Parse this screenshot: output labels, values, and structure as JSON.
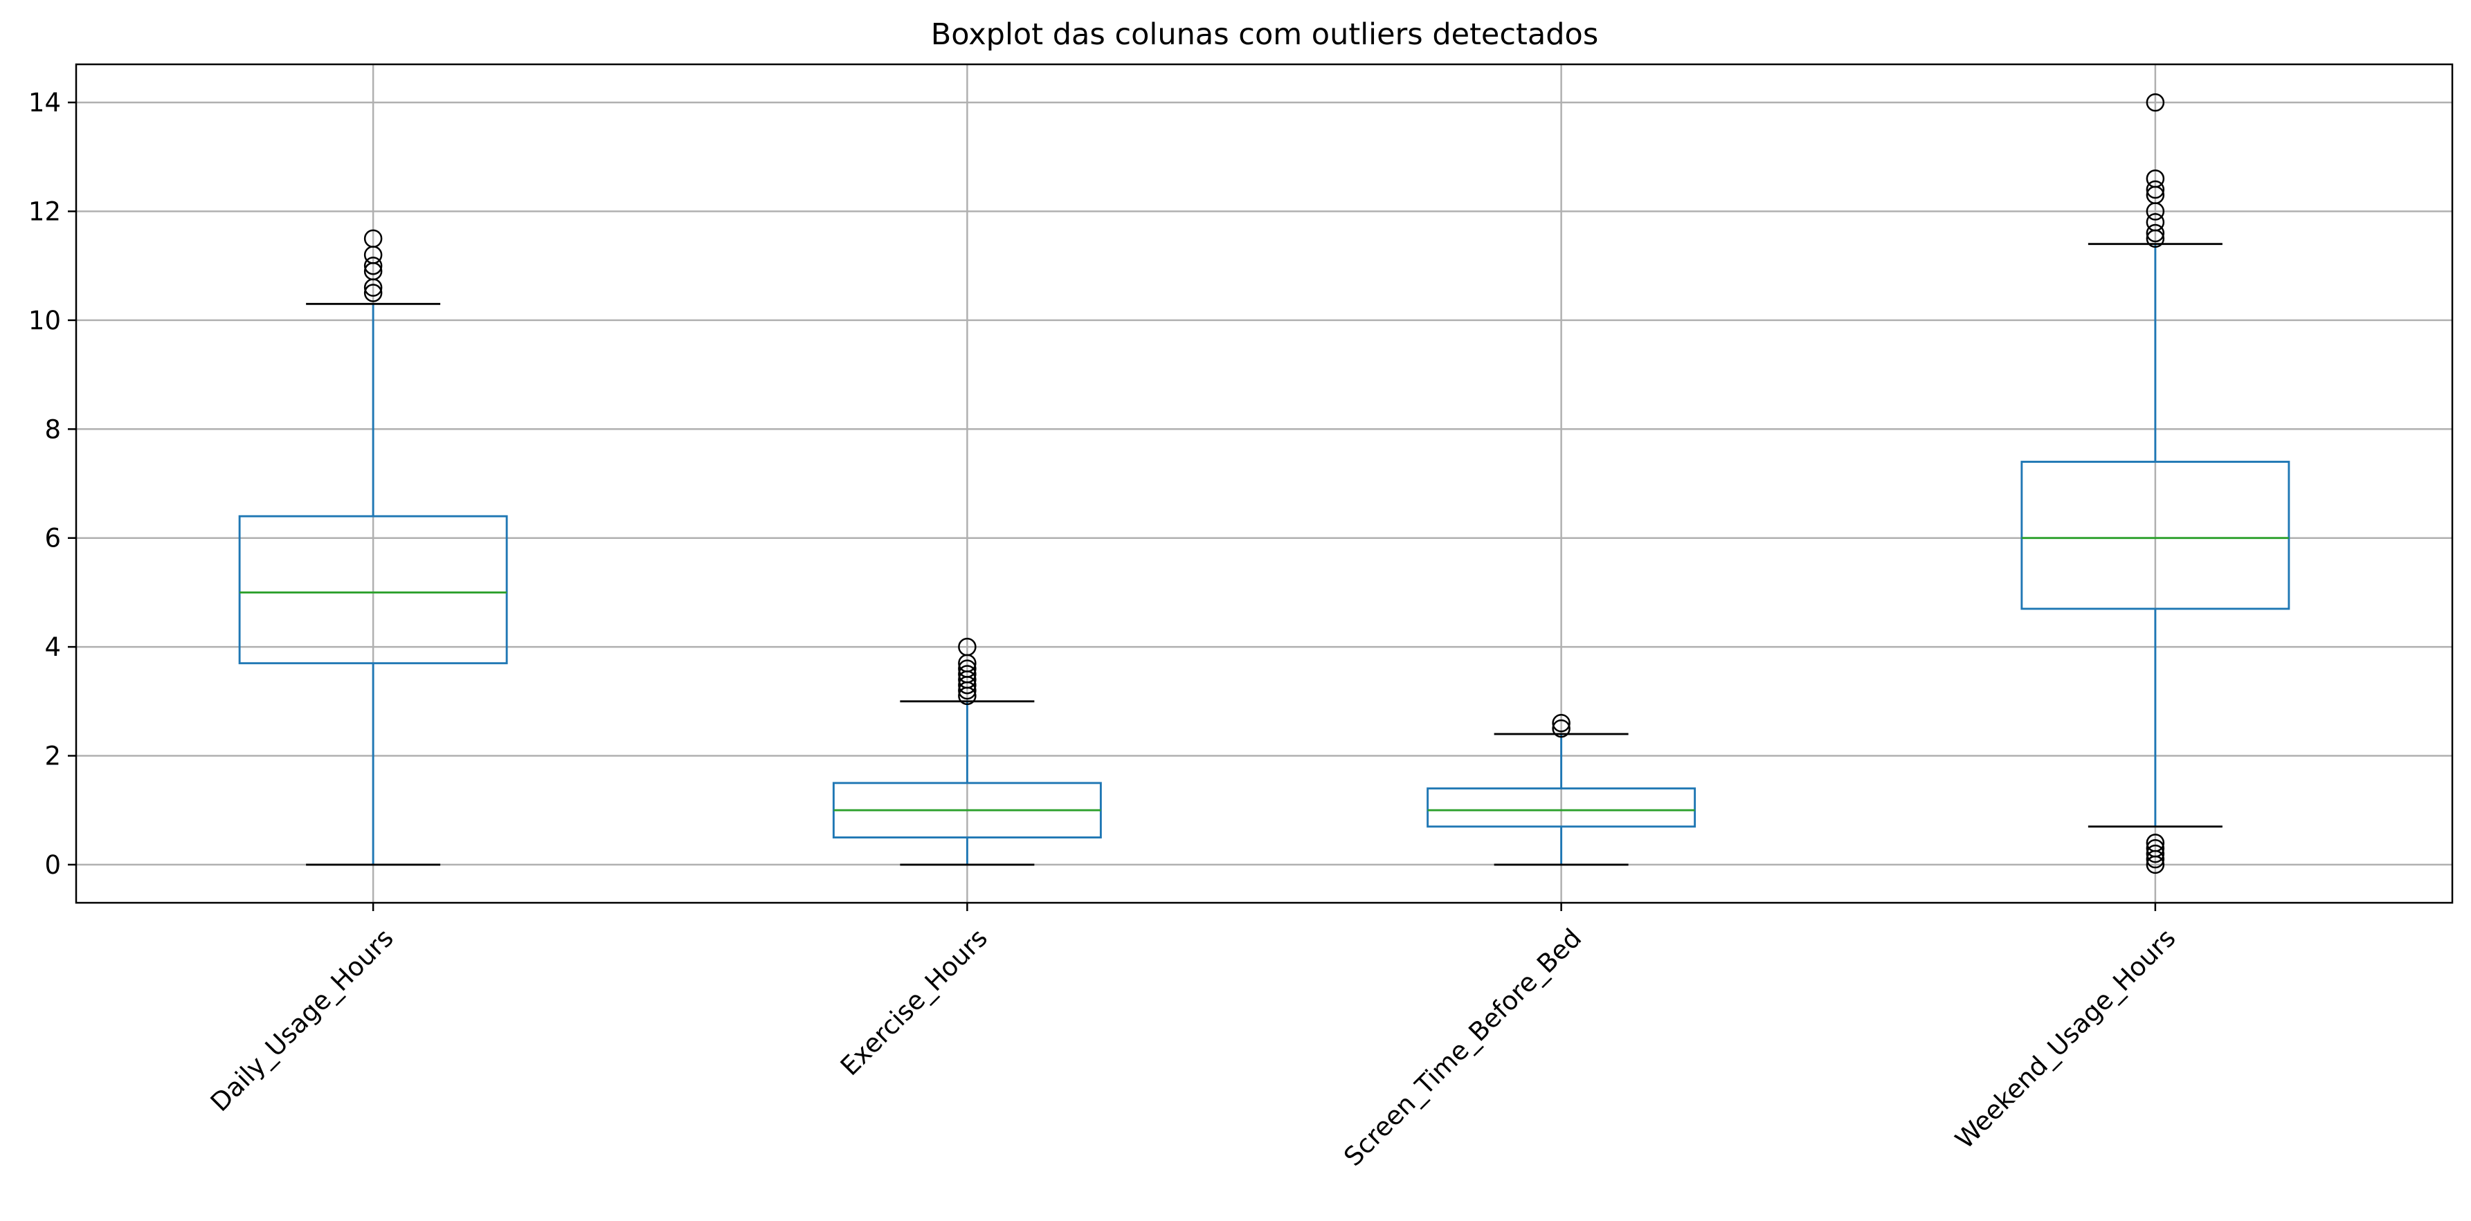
{
  "chart_data": {
    "type": "boxplot",
    "title": "Boxplot das colunas com outliers detectados",
    "xlabel": "",
    "ylabel": "",
    "ylim": [
      -0.7,
      14.7
    ],
    "yticks": [
      0,
      2,
      4,
      6,
      8,
      10,
      12,
      14
    ],
    "grid": true,
    "colors": {
      "box": "#1f77b4",
      "whisker": "#1f77b4",
      "cap": "#000000",
      "median": "#2ca02c",
      "flier": "#000000",
      "grid": "#b0b0b0"
    },
    "categories": [
      "Daily_Usage_Hours",
      "Exercise_Hours",
      "Screen_Time_Before_Bed",
      "Weekend_Usage_Hours"
    ],
    "boxes": [
      {
        "label": "Daily_Usage_Hours",
        "whisker_low": 0.0,
        "q1": 3.7,
        "median": 5.0,
        "q3": 6.4,
        "whisker_high": 10.3,
        "outliers": [
          10.5,
          10.6,
          10.9,
          11.0,
          11.2,
          11.5
        ]
      },
      {
        "label": "Exercise_Hours",
        "whisker_low": 0.0,
        "q1": 0.5,
        "median": 1.0,
        "q3": 1.5,
        "whisker_high": 3.0,
        "outliers": [
          3.1,
          3.2,
          3.3,
          3.4,
          3.5,
          3.6,
          3.7,
          4.0
        ]
      },
      {
        "label": "Screen_Time_Before_Bed",
        "whisker_low": 0.0,
        "q1": 0.7,
        "median": 1.0,
        "q3": 1.4,
        "whisker_high": 2.4,
        "outliers": [
          2.5,
          2.6
        ]
      },
      {
        "label": "Weekend_Usage_Hours",
        "whisker_low": 0.7,
        "q1": 4.7,
        "median": 6.0,
        "q3": 7.4,
        "whisker_high": 11.4,
        "outliers": [
          0.0,
          0.1,
          0.2,
          0.3,
          0.4,
          11.5,
          11.6,
          11.8,
          12.0,
          12.3,
          12.4,
          12.6,
          14.0
        ]
      }
    ]
  }
}
